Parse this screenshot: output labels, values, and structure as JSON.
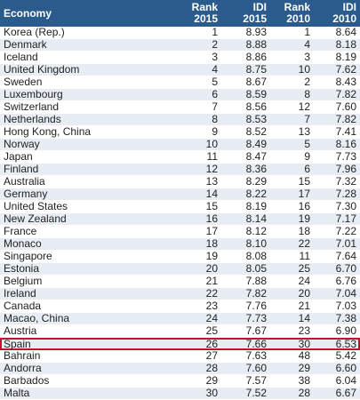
{
  "table": {
    "header": [
      [
        "Economy"
      ],
      [
        "Rank",
        "2015"
      ],
      [
        "IDI",
        "2015"
      ],
      [
        "Rank",
        "2010"
      ],
      [
        "IDI",
        "2010"
      ]
    ],
    "rows": [
      [
        "Korea (Rep.)",
        "1",
        "8.93",
        "1",
        "8.64"
      ],
      [
        "Denmark",
        "2",
        "8.88",
        "4",
        "8.18"
      ],
      [
        "Iceland",
        "3",
        "8.86",
        "3",
        "8.19"
      ],
      [
        "United Kingdom",
        "4",
        "8.75",
        "10",
        "7.62"
      ],
      [
        "Sweden",
        "5",
        "8.67",
        "2",
        "8.43"
      ],
      [
        "Luxembourg",
        "6",
        "8.59",
        "8",
        "7.82"
      ],
      [
        "Switzerland",
        "7",
        "8.56",
        "12",
        "7.60"
      ],
      [
        "Netherlands",
        "8",
        "8.53",
        "7",
        "7.82"
      ],
      [
        "Hong Kong, China",
        "9",
        "8.52",
        "13",
        "7.41"
      ],
      [
        "Norway",
        "10",
        "8.49",
        "5",
        "8.16"
      ],
      [
        "Japan",
        "11",
        "8.47",
        "9",
        "7.73"
      ],
      [
        "Finland",
        "12",
        "8.36",
        "6",
        "7.96"
      ],
      [
        "Australia",
        "13",
        "8.29",
        "15",
        "7.32"
      ],
      [
        "Germany",
        "14",
        "8.22",
        "17",
        "7.28"
      ],
      [
        "United States",
        "15",
        "8.19",
        "16",
        "7.30"
      ],
      [
        "New Zealand",
        "16",
        "8.14",
        "19",
        "7.17"
      ],
      [
        "France",
        "17",
        "8.12",
        "18",
        "7.22"
      ],
      [
        "Monaco",
        "18",
        "8.10",
        "22",
        "7.01"
      ],
      [
        "Singapore",
        "19",
        "8.08",
        "11",
        "7.64"
      ],
      [
        "Estonia",
        "20",
        "8.05",
        "25",
        "6.70"
      ],
      [
        "Belgium",
        "21",
        "7.88",
        "24",
        "6.76"
      ],
      [
        "Ireland",
        "22",
        "7.82",
        "20",
        "7.04"
      ],
      [
        "Canada",
        "23",
        "7.76",
        "21",
        "7.03"
      ],
      [
        "Macao, China",
        "24",
        "7.73",
        "14",
        "7.38"
      ],
      [
        "Austria",
        "25",
        "7.67",
        "23",
        "6.90"
      ],
      [
        "Spain",
        "26",
        "7.66",
        "30",
        "6.53"
      ],
      [
        "Bahrain",
        "27",
        "7.63",
        "48",
        "5.42"
      ],
      [
        "Andorra",
        "28",
        "7.60",
        "29",
        "6.60"
      ],
      [
        "Barbados",
        "29",
        "7.57",
        "38",
        "6.04"
      ],
      [
        "Malta",
        "30",
        "7.52",
        "28",
        "6.67"
      ]
    ]
  }
}
